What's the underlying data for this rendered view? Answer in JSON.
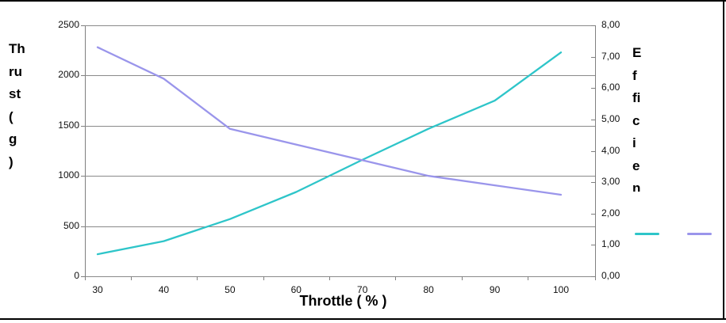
{
  "chart_data": {
    "type": "line",
    "x": [
      30,
      40,
      50,
      60,
      70,
      80,
      90,
      100
    ],
    "series": [
      {
        "name": "thrust",
        "axis": "left",
        "color": "#2EC5C9",
        "values": [
          220,
          350,
          570,
          840,
          1160,
          1470,
          1750,
          2230
        ]
      },
      {
        "name": "efficiency",
        "axis": "right",
        "color": "#9A95EB",
        "values": [
          7.3,
          6.3,
          4.7,
          4.2,
          3.7,
          3.2,
          2.9,
          2.6
        ]
      }
    ],
    "title": "",
    "xlabel": "Throttle ( % )",
    "ylabel_left": "Thrust ( g )",
    "ylabel_right": "Efficien",
    "x_tick_labels": [
      "30",
      "40",
      "50",
      "60",
      "70",
      "80",
      "90",
      "100"
    ],
    "left_axis": {
      "tick_labels_top_to_bottom": [
        "2500",
        "2000",
        "1500",
        "1000",
        "500",
        "0"
      ],
      "range": [
        0,
        2500
      ]
    },
    "right_axis": {
      "tick_labels_top_to_bottom": [
        "8,00",
        "7,00",
        "6,00",
        "5,00",
        "4,00",
        "3,00",
        "2,00",
        "1,00",
        "0,00"
      ],
      "range": [
        0,
        8
      ]
    },
    "grid": true,
    "legend_position": "right",
    "legend_entries_text_visible": false
  },
  "titles": {
    "x_axis": "Throttle ( % )",
    "left_axis_lines": "Th\nru\nst\n(\ng\n)",
    "right_axis_lines": "E\nf\nfi\nc\ni\ne\nn"
  },
  "colors": {
    "thrust_line": "#2EC5C9",
    "efficiency_line": "#9A95EB",
    "gridline": "#8a8a8a",
    "frame_border": "#000000"
  }
}
